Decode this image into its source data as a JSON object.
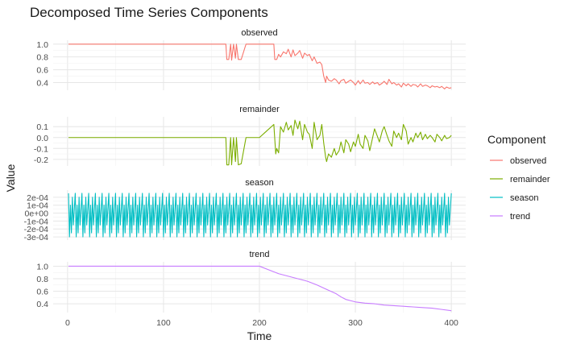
{
  "chart_data": {
    "type": "line",
    "title": "Decomposed Time Series Components",
    "xlabel": "Time",
    "ylabel": "Value",
    "xlim": [
      -15,
      415
    ],
    "x_ticks": [
      0,
      100,
      200,
      300,
      400
    ],
    "legend": {
      "title": "Component",
      "placement": "right",
      "entries": [
        "observed",
        "remainder",
        "season",
        "trend"
      ]
    },
    "grid": true,
    "panels": [
      {
        "name": "observed",
        "color": "#F8766D",
        "ylim": [
          0.28,
          1.06
        ],
        "y_ticks": [
          0.4,
          0.6,
          0.8,
          1.0
        ],
        "y_tick_labels": [
          "0.4",
          "0.6",
          "0.8",
          "1.0"
        ],
        "x": [
          1,
          165,
          166,
          168,
          170,
          171,
          173,
          175,
          176,
          178,
          181,
          186,
          195,
          205,
          215,
          216,
          218,
          220,
          222,
          225,
          228,
          230,
          233,
          235,
          237,
          240,
          242,
          245,
          247,
          250,
          252,
          255,
          257,
          260,
          263,
          265,
          267,
          269,
          270,
          272,
          275,
          278,
          280,
          283,
          285,
          288,
          290,
          293,
          295,
          298,
          300,
          303,
          305,
          308,
          310,
          313,
          315,
          318,
          320,
          323,
          325,
          328,
          330,
          333,
          335,
          338,
          340,
          343,
          345,
          348,
          350,
          353,
          355,
          358,
          360,
          363,
          365,
          368,
          370,
          373,
          375,
          378,
          380,
          383,
          385,
          388,
          390,
          393,
          395,
          398,
          400
        ],
        "values": [
          1.0,
          1.0,
          0.76,
          0.76,
          1.0,
          0.75,
          1.0,
          0.78,
          1.0,
          0.76,
          0.76,
          1.0,
          1.0,
          1.0,
          1.0,
          0.76,
          0.76,
          0.84,
          0.8,
          0.88,
          0.85,
          0.92,
          0.8,
          0.91,
          0.82,
          0.86,
          0.9,
          0.78,
          0.86,
          0.82,
          0.84,
          0.74,
          0.8,
          0.7,
          0.72,
          0.68,
          0.5,
          0.4,
          0.5,
          0.44,
          0.42,
          0.46,
          0.44,
          0.38,
          0.43,
          0.45,
          0.39,
          0.42,
          0.44,
          0.4,
          0.36,
          0.43,
          0.38,
          0.44,
          0.39,
          0.4,
          0.37,
          0.41,
          0.38,
          0.4,
          0.36,
          0.39,
          0.42,
          0.37,
          0.45,
          0.38,
          0.4,
          0.36,
          0.38,
          0.33,
          0.39,
          0.35,
          0.38,
          0.34,
          0.37,
          0.36,
          0.33,
          0.38,
          0.34,
          0.36,
          0.35,
          0.32,
          0.35,
          0.33,
          0.34,
          0.32,
          0.34,
          0.3,
          0.33,
          0.31,
          0.32
        ]
      },
      {
        "name": "remainder",
        "color": "#7CAE00",
        "ylim": [
          -0.26,
          0.19
        ],
        "y_ticks": [
          -0.2,
          -0.1,
          0.0,
          0.1
        ],
        "y_tick_labels": [
          "-0.2",
          "-0.1",
          "0.0",
          "0.1"
        ],
        "x": [
          1,
          165,
          166,
          168,
          170,
          171,
          173,
          175,
          176,
          178,
          181,
          186,
          195,
          200,
          205,
          210,
          215,
          217,
          218,
          220,
          222,
          225,
          228,
          230,
          233,
          235,
          237,
          240,
          242,
          245,
          247,
          250,
          252,
          255,
          257,
          260,
          263,
          265,
          267,
          269,
          270,
          272,
          275,
          278,
          280,
          283,
          285,
          288,
          290,
          293,
          295,
          298,
          300,
          303,
          305,
          308,
          310,
          313,
          315,
          318,
          320,
          323,
          325,
          328,
          330,
          333,
          335,
          338,
          340,
          343,
          345,
          348,
          350,
          353,
          355,
          358,
          360,
          363,
          365,
          368,
          370,
          373,
          375,
          378,
          380,
          383,
          385,
          388,
          390,
          393,
          395,
          398,
          400
        ],
        "values": [
          0.0,
          0.0,
          -0.25,
          -0.25,
          0.0,
          -0.25,
          0.0,
          -0.22,
          0.0,
          -0.25,
          -0.24,
          0.0,
          0.0,
          0.0,
          0.04,
          0.08,
          0.12,
          -0.15,
          -0.1,
          -0.14,
          0.1,
          0.05,
          0.14,
          0.07,
          0.11,
          0.02,
          0.16,
          0.08,
          0.15,
          -0.02,
          0.12,
          0.05,
          0.03,
          -0.1,
          0.14,
          -0.02,
          0.02,
          0.12,
          -0.05,
          -0.18,
          -0.22,
          -0.15,
          -0.18,
          -0.1,
          -0.16,
          -0.12,
          -0.04,
          -0.14,
          -0.02,
          -0.06,
          -0.13,
          -0.04,
          -0.08,
          0.03,
          -0.06,
          -0.1,
          0.02,
          -0.03,
          -0.12,
          0.0,
          0.08,
          0.01,
          -0.04,
          0.06,
          0.1,
          0.02,
          -0.03,
          -0.08,
          0.06,
          0.0,
          0.04,
          -0.02,
          0.12,
          0.06,
          -0.06,
          0.0,
          -0.04,
          0.04,
          0.0,
          0.05,
          -0.02,
          0.03,
          -0.01,
          0.02,
          0.0,
          -0.04,
          0.03,
          0.0,
          -0.03,
          0.02,
          -0.01,
          0.0,
          0.02
        ]
      },
      {
        "name": "season",
        "color": "#00BFC4",
        "ylim": [
          -0.00034,
          0.00029
        ],
        "y_ticks": [
          -0.0003,
          -0.0002,
          -0.0001,
          0.0,
          0.0001,
          0.0002
        ],
        "y_tick_labels": [
          "-3e-04",
          "-2e-04",
          "-1e-04",
          "0e+00",
          "1e-04",
          "2e-04"
        ],
        "period": 7,
        "x_range": [
          1,
          400
        ],
        "pattern": [
          0.00025,
          -0.0003,
          0.0001,
          -0.00025,
          0.0002,
          -0.00015,
          5e-05
        ]
      },
      {
        "name": "trend",
        "color": "#C77CFF",
        "ylim": [
          0.26,
          1.07
        ],
        "y_ticks": [
          0.4,
          0.6,
          0.8,
          1.0
        ],
        "y_tick_labels": [
          "0.4",
          "0.6",
          "0.8",
          "1.0"
        ],
        "x": [
          1,
          100,
          150,
          200,
          210,
          220,
          230,
          240,
          250,
          260,
          270,
          280,
          285,
          290,
          295,
          300,
          310,
          320,
          330,
          340,
          350,
          360,
          370,
          380,
          390,
          400
        ],
        "values": [
          1.0,
          1.0,
          1.0,
          1.0,
          0.94,
          0.88,
          0.84,
          0.8,
          0.76,
          0.7,
          0.63,
          0.56,
          0.51,
          0.47,
          0.45,
          0.43,
          0.41,
          0.4,
          0.38,
          0.37,
          0.36,
          0.35,
          0.34,
          0.33,
          0.31,
          0.29
        ]
      }
    ]
  }
}
